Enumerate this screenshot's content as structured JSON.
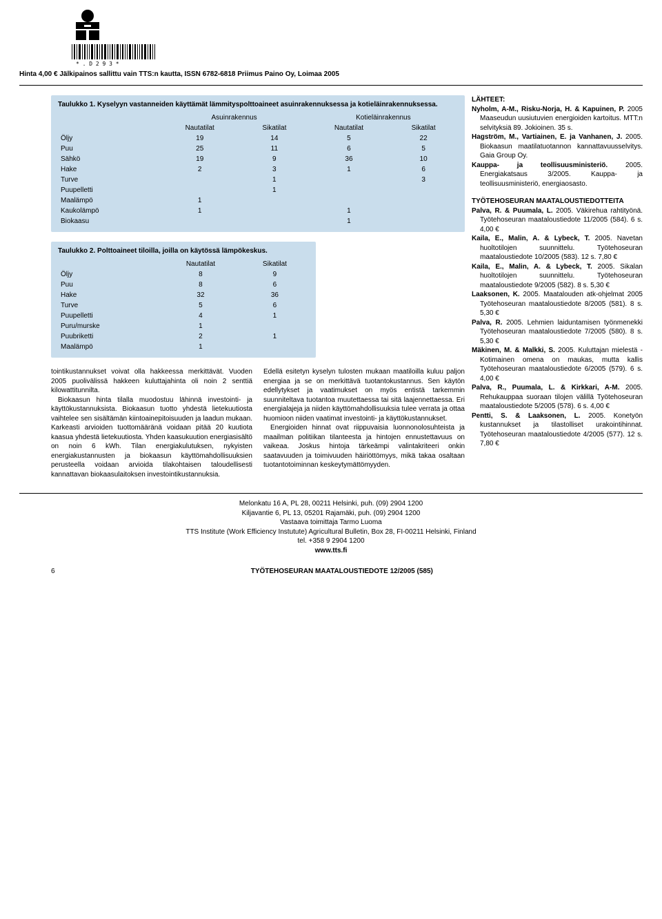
{
  "header": {
    "price_line": "Hinta 4,00 € Jälkipainos sallittu vain TTS:n kautta, ISSN 6782-6818 Priimus Paino Oy, Loimaa 2005"
  },
  "table1": {
    "type": "table",
    "background_color": "#c9ddec",
    "caption": "Taulukko 1. Kyselyyn vastanneiden käyttämät lämmityspolttoaineet asuinrakennuksessa ja kotieläinrakennuksessa.",
    "group_headers": [
      "",
      "Asuinrakennus",
      "Kotieläinrakennus"
    ],
    "col_headers": [
      "",
      "Nautatilat",
      "Sikatilat",
      "Nautatilat",
      "Sikatilat"
    ],
    "rows": [
      [
        "Öljy",
        "19",
        "14",
        "5",
        "22"
      ],
      [
        "Puu",
        "25",
        "11",
        "6",
        "5"
      ],
      [
        "Sähkö",
        "19",
        "9",
        "36",
        "10"
      ],
      [
        "Hake",
        "2",
        "3",
        "1",
        "6"
      ],
      [
        "Turve",
        "",
        "1",
        "",
        "3"
      ],
      [
        "Puupelletti",
        "",
        "1",
        "",
        ""
      ],
      [
        "Maalämpö",
        "1",
        "",
        "",
        ""
      ],
      [
        "Kaukolämpö",
        "1",
        "",
        "1",
        ""
      ],
      [
        "Biokaasu",
        "",
        "",
        "1",
        ""
      ]
    ]
  },
  "table2": {
    "type": "table",
    "background_color": "#c9ddec",
    "caption": "Taulukko 2. Polttoaineet tiloilla, joilla on käytössä lämpökeskus.",
    "col_headers": [
      "",
      "Nautatilat",
      "Sikatilat"
    ],
    "rows": [
      [
        "Öljy",
        "8",
        "9"
      ],
      [
        "Puu",
        "8",
        "6"
      ],
      [
        "Hake",
        "32",
        "36"
      ],
      [
        "Turve",
        "5",
        "6"
      ],
      [
        "Puupelletti",
        "4",
        "1"
      ],
      [
        "Puru/murske",
        "1",
        ""
      ],
      [
        "Puubriketti",
        "2",
        "1"
      ],
      [
        "Maalämpö",
        "1",
        ""
      ]
    ]
  },
  "body": {
    "col1": [
      "tointikustannukset voivat olla hakkeessa merkittävät. Vuoden 2005 puolivälissä hakkeen kuluttajahinta oli noin 2 senttiä kilowattitunnilta.",
      "Biokaasun hinta tilalla muodostuu lähinnä investointi- ja käyttökustannuksista. Biokaasun tuotto yhdestä lietekuutiosta vaihtelee sen sisältämän kiintoainepitoisuuden ja laadun mukaan. Karkeasti arvioiden tuottomääränä voidaan pitää 20 kuutiota kaasua yhdestä lietekuutiosta. Yhden kaasukuution energiasisältö on noin 6 kWh. Tilan energiakulutuksen, nykyisten energiakustannusten ja biokaasun käyttömahdollisuuksien perusteella voidaan arvioida tilakohtaisen taloudellisesti kannattavan biokaasulaitoksen investointikustannuksia."
    ],
    "col2": [
      "Edellä esitetyn kyselyn tulosten mukaan maatiloilla kuluu paljon energiaa ja se on merkittävä tuotantokustannus. Sen käytön edellytykset ja vaatimukset on myös entistä tarkemmin suunniteltava tuotantoa muutettaessa tai sitä laajennettaessa. Eri energialajeja ja niiden käyttömahdollisuuksia tulee verrata ja ottaa huomioon niiden vaatimat investointi- ja käyttökustannukset.",
      "Energioiden hinnat ovat riippuvaisia luonnonolosuhteista ja maailman politiikan tilanteesta ja hintojen ennustettavuus on vaikeaa. Joskus hintoja tärkeämpi valintakriteeri onkin saatavuuden ja toimivuuden häiriöttömyys, mikä takaa osaltaan tuotantotoiminnan keskeytymättömyyden."
    ]
  },
  "side": {
    "lahteet_title": "LÄHTEET:",
    "refs1": [
      "Nyholm, A-M., Risku-Norja, H. & Kapuinen, P. 2005 Maaseudun uusiutuvien energioiden kartoitus. MTT:n selvityksiä 89. Jokioinen. 35 s.",
      "Hagström, M., Vartiainen, E. ja Vanhanen, J. 2005. Biokaasun maatilatuotannon kannattavuusselvitys. Gaia Group Oy.",
      "Kauppa- ja teollisuusministeriö. 2005. Energiakatsaus 3/2005. Kauppa- ja teollisuusministeriö, energiaosasto."
    ],
    "section2_title": "TYÖTEHOSEURAN MAATALOUSTIEDOTTEITA",
    "refs2": [
      "Palva, R. & Puumala, L. 2005. Väkirehua rahtityönä. Työtehoseuran maataloustiedote 11/2005 (584). 6 s. 4,00 €",
      "Kaila, E., Malin, A. & Lybeck, T. 2005. Navetan huoltotilojen suunnittelu. Työtehoseuran maataloustiedote 10/2005 (583). 12 s. 7,80 €",
      "Kaila, E., Malin, A. & Lybeck, T. 2005. Sikalan huoltotilojen suunnittelu. Työtehoseuran maataloustiedote 9/2005 (582). 8 s. 5,30 €",
      "Laaksonen, K. 2005. Maatalouden atk-ohjelmat 2005 Työtehoseuran maataloustiedote 8/2005 (581). 8 s. 5,30 €",
      "Palva, R. 2005. Lehmien laiduntamisen työnmenekki Työtehoseuran maataloustiedote 7/2005 (580). 8 s. 5,30 €",
      "Mäkinen, M. & Malkki, S. 2005. Kuluttajan mielestä - Kotimainen omena on maukas, mutta kallis Työtehoseuran maataloustiedote 6/2005 (579). 6 s. 4,00 €",
      "Palva, R., Puumala, L. & Kirkkari, A-M. 2005. Rehukauppaa suoraan tilojen välillä Työtehoseuran maataloustiedote 5/2005 (578). 6 s. 4,00 €",
      "Pentti, S. & Laaksonen, L. 2005. Konetyön kustannukset ja tilastolliset urakointihinnat. Työtehoseuran maataloustiedote 4/2005 (577). 12 s. 7,80 €"
    ]
  },
  "footer": {
    "lines": [
      "Melonkatu 16 A, PL 28, 00211 Helsinki, puh. (09) 2904 1200",
      "Kiljavantie 6, PL 13, 05201 Rajamäki, puh. (09) 2904 1200",
      "Vastaava toimittaja Tarmo Luoma",
      "TTS Institute (Work Efficiency Instutute) Agricultural Bulletin, Box 28, FI-00211 Helsinki, Finland",
      "tel. +358 9 2904 1200"
    ],
    "url": "www.tts.fi",
    "page_num": "6",
    "publication": "TYÖTEHOSEURAN MAATALOUSTIEDOTE  12/2005 (585)"
  }
}
